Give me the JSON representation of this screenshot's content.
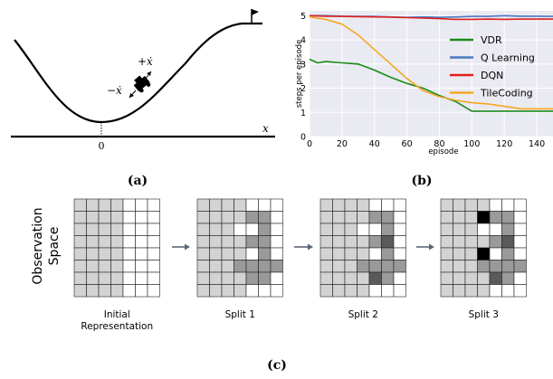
{
  "panel_a": {
    "caption": "(a)",
    "axis_x_label": "x",
    "origin_label": "0",
    "plus_label": "+ẋ",
    "minus_label": "−ẋ"
  },
  "panel_b": {
    "caption": "(b)",
    "colors": {
      "VDR": "#1a8a1a",
      "Q Learning": "#4a78c0",
      "DQN": "#e0201c",
      "TileCoding": "#f5a623",
      "plot_bg": "#eaeaf2"
    }
  },
  "chart_data": {
    "type": "line",
    "xlabel": "episode",
    "ylabel": "steps per episode",
    "xlim": [
      0,
      150
    ],
    "ylim": [
      0,
      5.2
    ],
    "xticks": [
      0,
      20,
      40,
      60,
      80,
      100,
      120,
      140
    ],
    "yticks": [
      0,
      1,
      2,
      3,
      4,
      5
    ],
    "legend_position": "right",
    "grid": true,
    "series": [
      {
        "name": "VDR",
        "x": [
          0,
          5,
          10,
          20,
          30,
          40,
          50,
          60,
          70,
          80,
          90,
          100,
          110,
          120,
          130,
          140,
          150
        ],
        "values": [
          3.2,
          3.05,
          3.1,
          3.05,
          3.0,
          2.75,
          2.45,
          2.2,
          2.0,
          1.7,
          1.45,
          1.05,
          1.05,
          1.05,
          1.05,
          1.05,
          1.05
        ]
      },
      {
        "name": "Q Learning",
        "x": [
          0,
          10,
          20,
          30,
          40,
          50,
          60,
          70,
          80,
          90,
          100,
          110,
          120,
          130,
          140,
          150
        ],
        "values": [
          5.0,
          5.0,
          4.98,
          4.97,
          4.97,
          4.95,
          4.93,
          4.95,
          4.93,
          4.95,
          4.97,
          4.97,
          5.0,
          4.98,
          4.98,
          4.97
        ]
      },
      {
        "name": "DQN",
        "x": [
          0,
          10,
          20,
          30,
          40,
          50,
          60,
          70,
          80,
          90,
          100,
          110,
          120,
          130,
          140,
          150
        ],
        "values": [
          5.0,
          4.98,
          4.97,
          4.96,
          4.95,
          4.94,
          4.92,
          4.9,
          4.88,
          4.85,
          4.85,
          4.86,
          4.85,
          4.86,
          4.86,
          4.86
        ]
      },
      {
        "name": "TileCoding",
        "x": [
          0,
          10,
          20,
          30,
          40,
          50,
          60,
          70,
          80,
          90,
          100,
          110,
          120,
          130,
          140,
          150
        ],
        "values": [
          4.95,
          4.85,
          4.65,
          4.2,
          3.6,
          3.0,
          2.4,
          1.9,
          1.65,
          1.5,
          1.4,
          1.35,
          1.25,
          1.15,
          1.15,
          1.15
        ]
      }
    ]
  },
  "panel_c": {
    "caption": "(c)",
    "side_label_line1": "Observation",
    "side_label_line2": "Space",
    "colors": {
      "light": "#d3d3d3",
      "mid": "#9a9a9a",
      "dark": "#5a5a5a",
      "black": "#000000",
      "empty": "#ffffff",
      "arrow": "#5b6679"
    },
    "grids": [
      {
        "label_lines": [
          "Initial",
          "Representation"
        ],
        "cells": [
          "LLLLEEE",
          "LLLLEEE",
          "LLLLEEE",
          "LLLLEEE",
          "LLLLEEE",
          "LLLLEEE",
          "LLLLEEE",
          "LLLLEEE"
        ]
      },
      {
        "label_lines": [
          "Split 1"
        ],
        "cells": [
          "LLLLEEE",
          "LLLLMME",
          "LLLEEME",
          "LLLLMME",
          "LLLLEME",
          "LLLMMMM",
          "LLLLMME",
          "LLLLEEE"
        ]
      },
      {
        "label_lines": [
          "Split 2"
        ],
        "cells": [
          "LLLLEEE",
          "LLLLMME",
          "LLLEEME",
          "LLLLMDE",
          "LLLLEME",
          "LLLMMMM",
          "LLLLDME",
          "LLLLEEE"
        ]
      },
      {
        "label_lines": [
          "Split 3"
        ],
        "cells": [
          "LLLLEEE",
          "LLLBMME",
          "LLLEEME",
          "LLLLMDE",
          "LLLBEME",
          "LLLMMMM",
          "LLLLDME",
          "LLLLEEE"
        ]
      }
    ]
  }
}
